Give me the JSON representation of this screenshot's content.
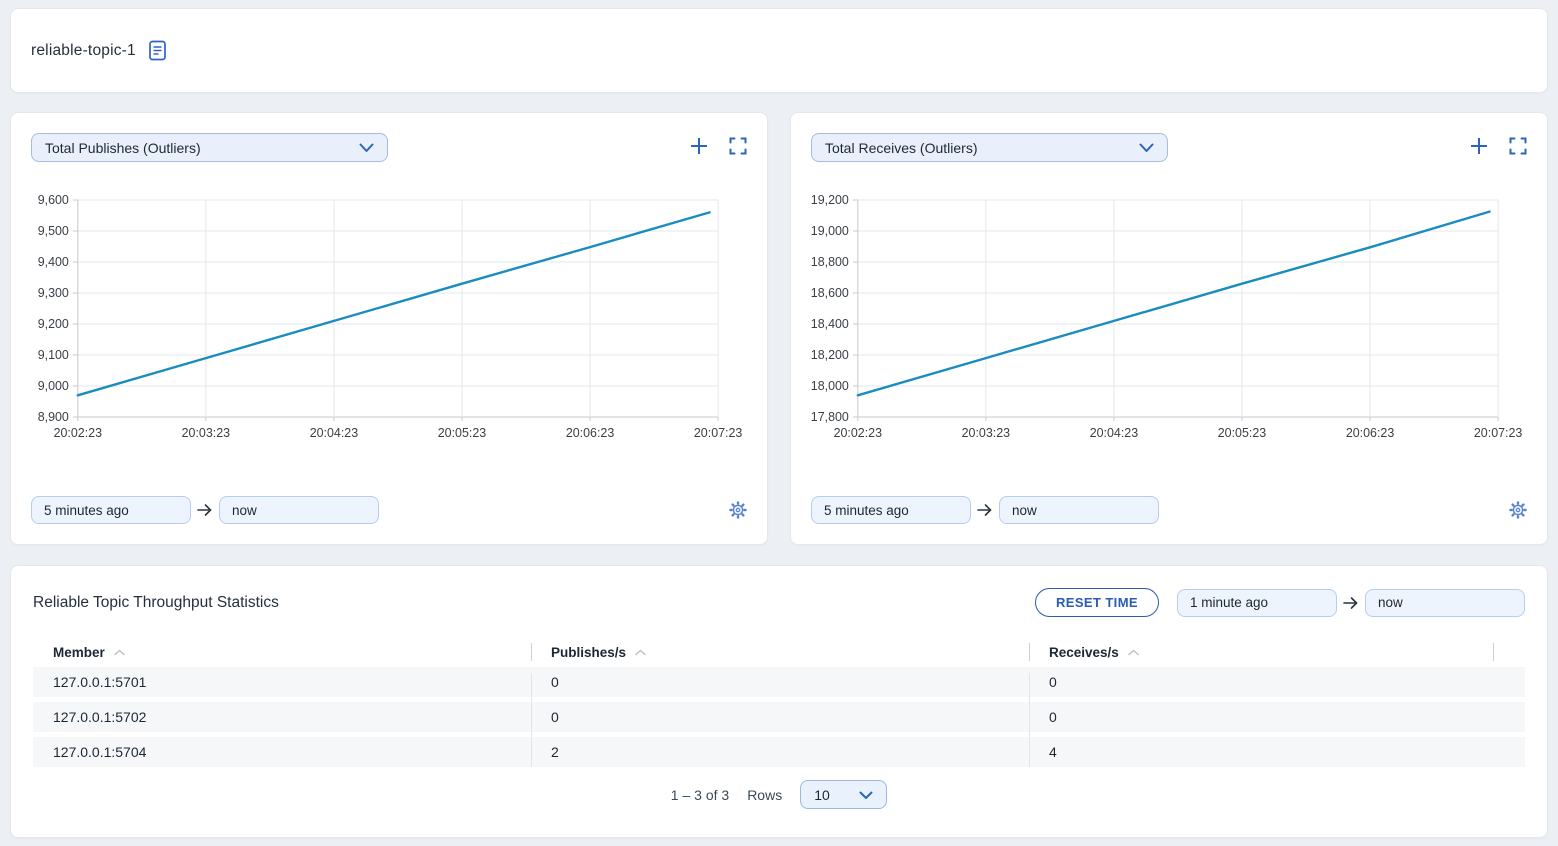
{
  "colors": {
    "accent_blue": "#2d64b8",
    "line_blue": "#1a8cc0",
    "page_bg": "#ecf0f4",
    "control_bg": "#e9f0fb",
    "control_border": "#a9bcda",
    "input_bg": "#edf4fd",
    "row_bg": "#f6f7f9"
  },
  "header": {
    "title": "reliable-topic-1"
  },
  "charts": [
    {
      "metric_select_value": "Total Publishes (Outliers)",
      "from_value": "5 minutes ago",
      "to_value": "now"
    },
    {
      "metric_select_value": "Total Receives (Outliers)",
      "from_value": "5 minutes ago",
      "to_value": "now"
    }
  ],
  "chart_data": [
    {
      "type": "line",
      "title": "Total Publishes (Outliers)",
      "x_tick_labels": [
        "20:02:23",
        "20:03:23",
        "20:04:23",
        "20:05:23",
        "20:06:23",
        "20:07:23"
      ],
      "x_tick_seconds": [
        0,
        60,
        120,
        180,
        240,
        300
      ],
      "x_range_seconds": [
        0,
        300
      ],
      "ylim": [
        8900,
        9600
      ],
      "y_step": 100,
      "grid": true,
      "legend": "none",
      "series": [
        {
          "name": "Total Publishes",
          "color": "#1a8cc0",
          "points": [
            [
              0,
              8970
            ],
            [
              60,
              9090
            ],
            [
              120,
              9210
            ],
            [
              180,
              9330
            ],
            [
              240,
              9448
            ],
            [
              296,
              9560
            ]
          ]
        }
      ]
    },
    {
      "type": "line",
      "title": "Total Receives (Outliers)",
      "x_tick_labels": [
        "20:02:23",
        "20:03:23",
        "20:04:23",
        "20:05:23",
        "20:06:23",
        "20:07:23"
      ],
      "x_tick_seconds": [
        0,
        60,
        120,
        180,
        240,
        300
      ],
      "x_range_seconds": [
        0,
        300
      ],
      "ylim": [
        17800,
        19200
      ],
      "y_step": 200,
      "grid": true,
      "legend": "none",
      "series": [
        {
          "name": "Total Receives",
          "color": "#1a8cc0",
          "points": [
            [
              0,
              17940
            ],
            [
              60,
              18180
            ],
            [
              120,
              18420
            ],
            [
              180,
              18660
            ],
            [
              240,
              18895
            ],
            [
              296,
              19125
            ]
          ]
        }
      ]
    }
  ],
  "stats": {
    "title": "Reliable Topic Throughput Statistics",
    "reset_button_label": "RESET TIME",
    "from_value": "1 minute ago",
    "to_value": "now",
    "table": {
      "columns": [
        "Member",
        "Publishes/s",
        "Receives/s"
      ],
      "rows": [
        [
          "127.0.0.1:5701",
          "0",
          "0"
        ],
        [
          "127.0.0.1:5702",
          "0",
          "0"
        ],
        [
          "127.0.0.1:5704",
          "2",
          "4"
        ]
      ]
    },
    "pagination": {
      "range_label": "1 – 3 of 3",
      "rows_label": "Rows",
      "rows_per_page": "10"
    }
  }
}
